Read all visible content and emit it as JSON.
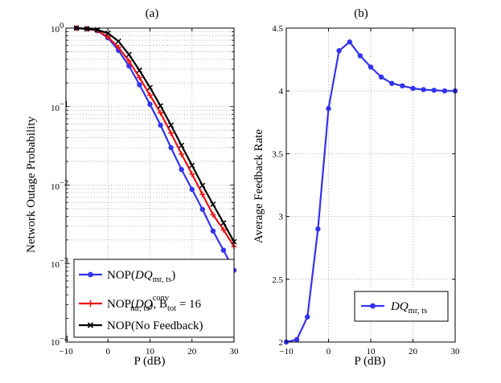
{
  "chart_data": [
    {
      "type": "line",
      "title": "(a)",
      "xlabel": "P (dB)",
      "ylabel": "Network Outage Probability",
      "xlim": [
        -10,
        30
      ],
      "ylim": [
        0.0001,
        1
      ],
      "yscale": "log",
      "grid": true,
      "xticks": [
        "−10",
        "0",
        "10",
        "20",
        "30"
      ],
      "xtick_values": [
        -10,
        0,
        10,
        20,
        30
      ],
      "legend_position": "bottom-left",
      "series": [
        {
          "name": "NOP(DQ mr, ts)",
          "color": "#3333ee",
          "marker": "circle",
          "x": [
            -7.5,
            -5,
            -2.5,
            0,
            2.5,
            5,
            7.5,
            10,
            12.5,
            15,
            17.5,
            20,
            22.5,
            25,
            27.5,
            30
          ],
          "y": [
            1.0,
            0.98,
            0.93,
            0.75,
            0.52,
            0.33,
            0.19,
            0.107,
            0.058,
            0.03,
            0.0158,
            0.0088,
            0.0049,
            0.0026,
            0.00148,
            0.00082
          ]
        },
        {
          "name": "NOP(DQ conv mr, ts), B tot = 16",
          "color": "#ee1111",
          "marker": "plus",
          "x": [
            -7.5,
            -5,
            -2.5,
            0,
            2.5,
            5,
            7.5,
            10,
            12.5,
            15,
            17.5,
            20,
            22.5,
            25,
            27.5,
            30
          ],
          "y": [
            1.0,
            0.98,
            0.93,
            0.77,
            0.57,
            0.38,
            0.235,
            0.14,
            0.083,
            0.046,
            0.0248,
            0.0138,
            0.0076,
            0.0042,
            0.0027,
            0.00165
          ]
        },
        {
          "name": "NOP(No Feedback)",
          "color": "#000000",
          "marker": "x",
          "x": [
            -7.5,
            -5,
            -2.5,
            0,
            2.5,
            5,
            7.5,
            10,
            12.5,
            15,
            17.5,
            20,
            22.5,
            25,
            27.5,
            30
          ],
          "y": [
            1.0,
            0.98,
            0.95,
            0.86,
            0.68,
            0.46,
            0.29,
            0.175,
            0.102,
            0.058,
            0.032,
            0.0178,
            0.0099,
            0.0057,
            0.0033,
            0.0019
          ]
        }
      ],
      "legend": {
        "entry1": {
          "pre": "NOP(",
          "italic": "DQ",
          "sub": "mr, ts",
          "post": ")"
        },
        "entry2": {
          "pre": "NOP(",
          "italic": "DQ",
          "sup": "conv",
          "sub": "mr, ts",
          "post": "), B",
          "bsub": "tot",
          "tail": " = 16"
        },
        "entry3": {
          "text": "NOP(No Feedback)"
        }
      }
    },
    {
      "type": "line",
      "title": "(b)",
      "xlabel": "P (dB)",
      "ylabel": "Average Feedback Rate",
      "xlim": [
        -10,
        30
      ],
      "ylim": [
        2,
        4.5
      ],
      "grid": true,
      "xticks": [
        "−10",
        "0",
        "10",
        "20",
        "30"
      ],
      "xtick_values": [
        -10,
        0,
        10,
        20,
        30
      ],
      "yticks": [
        "2",
        "2.5",
        "3",
        "3.5",
        "4",
        "4.5"
      ],
      "ytick_values": [
        2,
        2.5,
        3,
        3.5,
        4,
        4.5
      ],
      "legend_position": "bottom-right",
      "series": [
        {
          "name": "DQ mr, ts",
          "color": "#3333ee",
          "marker": "circle",
          "x": [
            -10,
            -7.5,
            -5,
            -2.5,
            0,
            2.5,
            5,
            7.5,
            10,
            12.5,
            15,
            17.5,
            20,
            22.5,
            25,
            27.5,
            30
          ],
          "y": [
            2.0,
            2.02,
            2.2,
            2.9,
            3.86,
            4.32,
            4.39,
            4.28,
            4.19,
            4.11,
            4.06,
            4.04,
            4.02,
            4.01,
            4.005,
            4.0,
            4.0
          ]
        }
      ],
      "legend": {
        "italic": "DQ",
        "sub": "mr, ts"
      }
    }
  ]
}
